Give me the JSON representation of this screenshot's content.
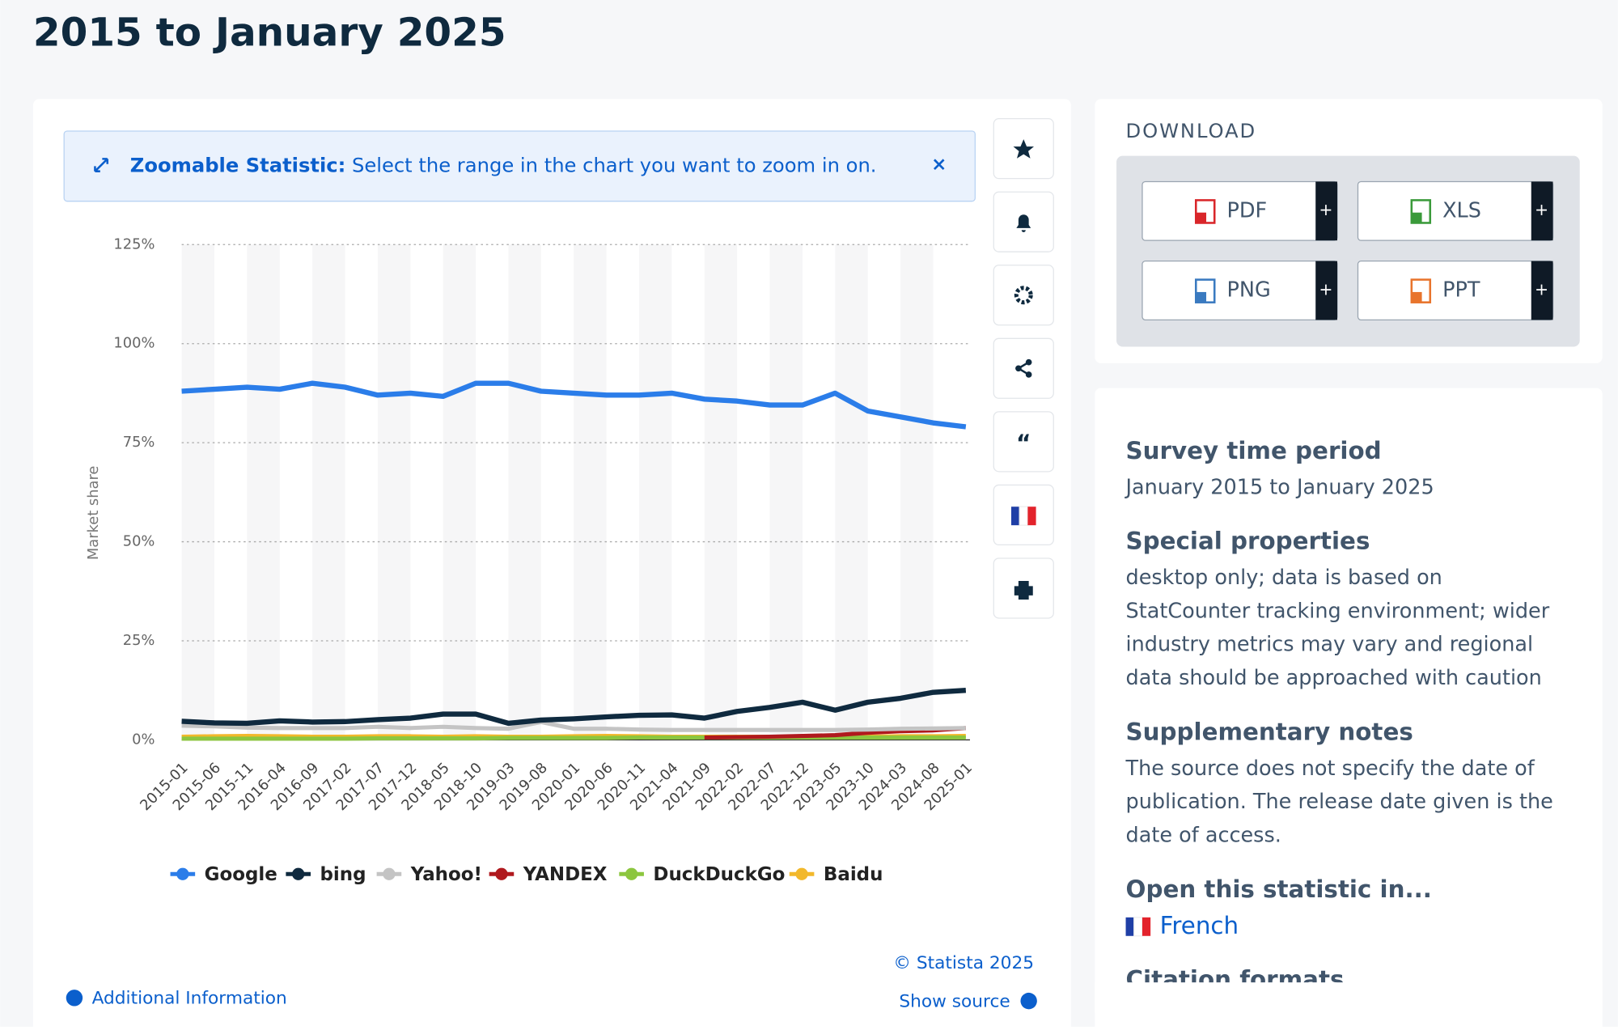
{
  "page": {
    "title": "2015 to January 2025",
    "zoom_label": "Zoomable Statistic:",
    "zoom_text": "Select the range in the chart you want to zoom in on.",
    "copyright": "© Statista 2025",
    "show_source": "Show source",
    "additional_info": "Additional Information",
    "download": {
      "heading": "DOWNLOAD",
      "buttons": [
        "PDF",
        "XLS",
        "PNG",
        "PPT"
      ]
    },
    "details": [
      {
        "heading": "Survey time period",
        "lines": [
          "January 2015 to January 2025"
        ]
      },
      {
        "heading": "Special properties",
        "lines": [
          "desktop only; data is based on",
          "StatCounter tracking environment; wider",
          "industry metrics may vary and regional",
          "data should be approached with caution"
        ]
      },
      {
        "heading": "Supplementary notes",
        "lines": [
          "The source does not specify the date of",
          "publication. The release date given is the",
          "date of access."
        ]
      },
      {
        "heading": "Open this statistic in...",
        "lines": [
          "French"
        ]
      },
      {
        "heading": "Citation formats",
        "lines": []
      }
    ]
  },
  "chart_data": {
    "type": "line",
    "y_label": "Market share",
    "categories": [
      "2015-01",
      "2015-06",
      "2015-11",
      "2016-04",
      "2016-09",
      "2017-02",
      "2017-07",
      "2017-12",
      "2018-05",
      "2018-10",
      "2019-03",
      "2019-08",
      "2020-01",
      "2020-06",
      "2020-11",
      "2021-04",
      "2021-09",
      "2022-02",
      "2022-07",
      "2022-12",
      "2023-05",
      "2023-10",
      "2024-03",
      "2024-08",
      "2025-01"
    ],
    "ylim": [
      0,
      125
    ],
    "yticks": [
      {
        "value": 0,
        "label": "0%"
      },
      {
        "value": 25,
        "label": "25%"
      },
      {
        "value": 50,
        "label": "50%"
      },
      {
        "value": 75,
        "label": "75%"
      },
      {
        "value": 100,
        "label": "100%"
      },
      {
        "value": 125,
        "label": "125%"
      }
    ],
    "grid": true,
    "series": [
      {
        "name": "Google",
        "color": "#2b7de9",
        "values": [
          88,
          88.5,
          89,
          88.5,
          90,
          89,
          87,
          87.5,
          86.7,
          90,
          90,
          88,
          87.5,
          87,
          87,
          87.5,
          86,
          85.5,
          84.5,
          84.5,
          87.5,
          83,
          81.5,
          80,
          79
        ]
      },
      {
        "name": "bing",
        "color": "#0f2a3f",
        "values": [
          4.7,
          4.3,
          4.2,
          4.8,
          4.5,
          4.6,
          5.1,
          5.5,
          6.5,
          6.5,
          4.2,
          5,
          5.3,
          5.8,
          6.2,
          6.3,
          5.5,
          7.2,
          8.2,
          9.5,
          7.5,
          9.5,
          10.5,
          12,
          12.5
        ]
      },
      {
        "name": "Yahoo!",
        "color": "#c4c4c4",
        "values": [
          3.6,
          3.4,
          3.1,
          3,
          3,
          3,
          3.3,
          3,
          3.3,
          3,
          2.8,
          4.5,
          2.8,
          2.8,
          2.6,
          2.5,
          2.5,
          2.5,
          2.5,
          2.5,
          2.5,
          2.6,
          2.8,
          2.9,
          3
        ]
      },
      {
        "name": "YANDEX",
        "color": "#b0191e",
        "values": [
          null,
          null,
          null,
          null,
          null,
          null,
          null,
          null,
          null,
          null,
          null,
          null,
          null,
          null,
          null,
          null,
          0.6,
          0.7,
          0.8,
          1,
          1.2,
          1.8,
          2.2,
          2.4,
          3
        ]
      },
      {
        "name": "DuckDuckGo",
        "color": "#8cc63f",
        "values": [
          0.3,
          0.3,
          0.3,
          0.3,
          0.3,
          0.3,
          0.4,
          0.4,
          0.4,
          0.4,
          0.5,
          0.5,
          0.5,
          0.5,
          0.6,
          0.6,
          0.6,
          0.6,
          0.6,
          0.6,
          0.6,
          0.6,
          0.6,
          0.6,
          0.6
        ]
      },
      {
        "name": "Baidu",
        "color": "#f2b82b",
        "values": [
          0.8,
          0.9,
          1,
          0.9,
          0.8,
          0.8,
          0.9,
          0.9,
          0.8,
          0.9,
          0.8,
          0.8,
          0.9,
          1,
          0.9,
          0.8,
          0.8,
          0.8,
          0.8,
          0.8,
          0.8,
          0.8,
          0.9,
          0.9,
          1
        ]
      }
    ]
  }
}
